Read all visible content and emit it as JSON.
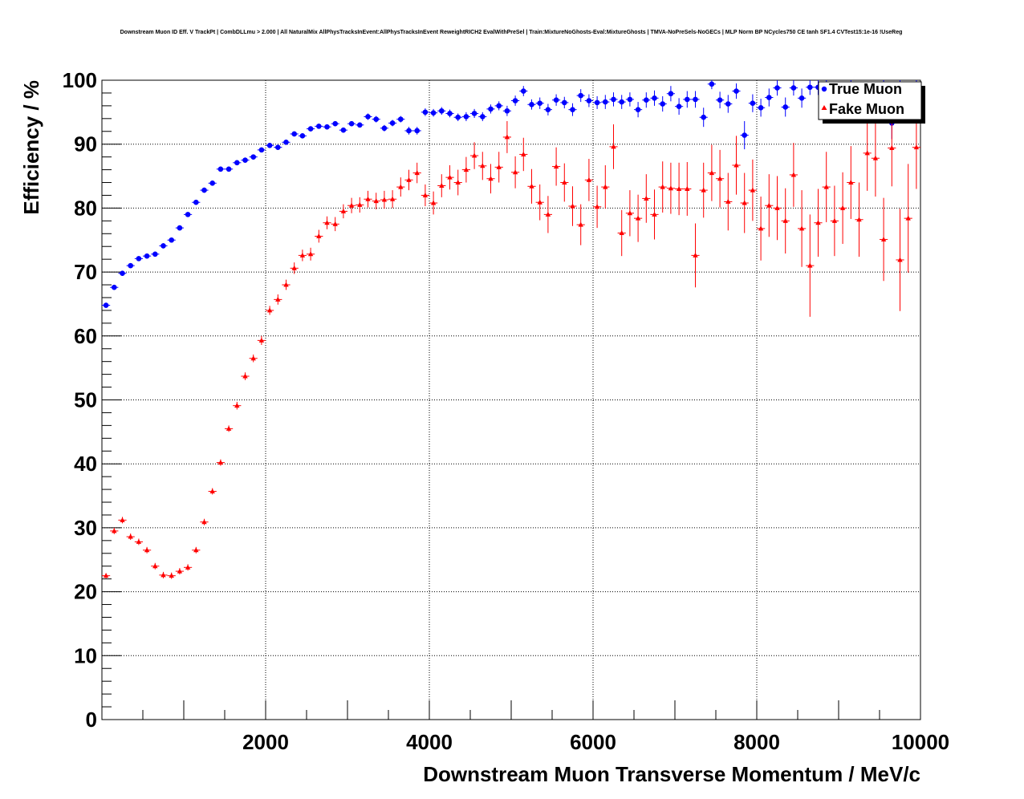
{
  "chart_data": {
    "type": "scatter",
    "title": "Downstream Muon ID Eff. V TrackPt | CombDLLmu > 2.000 | All NaturalMix AllPhysTracksInEvent:AllPhysTracksInEvent ReweightRICH2 EvalWithPreSel | Train:MixtureNoGhosts-Eval:MixtureGhosts | TMVA-NoPreSels-NoGECs | MLP Norm BP NCycles750 CE tanh SF1.4 CVTest15:1e-16 !UseReg",
    "xlabel": "Downstream Muon Transverse Momentum / MeV/c",
    "ylabel": "Efficiency / %",
    "xlim": [
      0,
      10000
    ],
    "ylim": [
      0,
      100
    ],
    "xticks": [
      "2000",
      "4000",
      "6000",
      "8000",
      "10000"
    ],
    "yticks": [
      "0",
      "10",
      "20",
      "30",
      "40",
      "50",
      "60",
      "70",
      "80",
      "90",
      "100"
    ],
    "grid": true,
    "legend_position": "top-right",
    "x": [
      50,
      150,
      250,
      350,
      450,
      550,
      650,
      750,
      850,
      950,
      1050,
      1150,
      1250,
      1350,
      1450,
      1550,
      1650,
      1750,
      1850,
      1950,
      2050,
      2150,
      2250,
      2350,
      2450,
      2550,
      2650,
      2750,
      2850,
      2950,
      3050,
      3150,
      3250,
      3350,
      3450,
      3550,
      3650,
      3750,
      3850,
      3950,
      4050,
      4150,
      4250,
      4350,
      4450,
      4550,
      4650,
      4750,
      4850,
      4950,
      5050,
      5150,
      5250,
      5350,
      5450,
      5550,
      5650,
      5750,
      5850,
      5950,
      6050,
      6150,
      6250,
      6350,
      6450,
      6550,
      6650,
      6750,
      6850,
      6950,
      7050,
      7150,
      7250,
      7350,
      7450,
      7550,
      7650,
      7750,
      7850,
      7950,
      8050,
      8150,
      8250,
      8350,
      8450,
      8550,
      8650,
      8750,
      8850,
      8950,
      9050,
      9150,
      9250,
      9350,
      9450,
      9550,
      9650,
      9750,
      9850,
      9950
    ],
    "series": [
      {
        "name": "True Muon",
        "color": "#0000ff",
        "marker": "circle",
        "values": [
          64.8,
          67.6,
          69.8,
          71.0,
          72.1,
          72.5,
          72.8,
          74.1,
          75.0,
          76.9,
          79.0,
          80.9,
          82.8,
          83.9,
          86.1,
          86.1,
          87.1,
          87.5,
          88.0,
          89.1,
          89.8,
          89.5,
          90.3,
          91.6,
          91.3,
          92.4,
          92.8,
          92.7,
          93.2,
          92.2,
          93.2,
          93.0,
          94.3,
          93.9,
          92.5,
          93.3,
          93.9,
          92.1,
          92.1,
          95.0,
          94.9,
          95.2,
          94.8,
          94.2,
          94.3,
          94.8,
          94.3,
          95.5,
          96.0,
          95.2,
          96.8,
          98.3,
          96.2,
          96.4,
          95.4,
          96.9,
          96.5,
          95.4,
          97.6,
          96.8,
          96.5,
          96.6,
          97.0,
          96.6,
          97.0,
          95.4,
          96.9,
          97.2,
          96.3,
          97.9,
          95.9,
          97.0,
          97.0,
          94.2,
          99.4,
          96.9,
          96.3,
          98.3,
          91.4,
          96.4,
          95.7,
          97.3,
          98.8,
          95.8,
          98.8,
          97.2,
          98.9,
          98.9,
          99.0,
          98.5,
          97.5,
          99.0,
          96.9,
          97.8,
          97.0,
          98.7,
          93.3,
          99.2,
          97.6,
          99.1
        ],
        "errors": [
          0.4,
          0.4,
          0.4,
          0.4,
          0.4,
          0.4,
          0.4,
          0.4,
          0.4,
          0.4,
          0.4,
          0.4,
          0.4,
          0.4,
          0.4,
          0.4,
          0.4,
          0.4,
          0.4,
          0.4,
          0.4,
          0.4,
          0.4,
          0.4,
          0.4,
          0.4,
          0.4,
          0.4,
          0.4,
          0.4,
          0.4,
          0.4,
          0.5,
          0.5,
          0.5,
          0.5,
          0.5,
          0.6,
          0.6,
          0.6,
          0.6,
          0.6,
          0.6,
          0.6,
          0.7,
          0.7,
          0.7,
          0.7,
          0.7,
          0.8,
          0.8,
          0.8,
          0.8,
          0.9,
          0.9,
          0.9,
          0.9,
          1.0,
          1.0,
          1.0,
          1.0,
          1.1,
          1.1,
          1.1,
          1.1,
          1.2,
          1.2,
          1.2,
          1.2,
          1.2,
          1.3,
          1.3,
          1.3,
          1.5,
          0.8,
          1.3,
          1.4,
          1.2,
          2.2,
          1.4,
          1.4,
          1.4,
          1.2,
          1.5,
          1.2,
          1.5,
          1.2,
          1.2,
          1.2,
          1.3,
          1.5,
          1.2,
          1.6,
          1.5,
          1.6,
          1.4,
          2.5,
          1.2,
          1.6,
          1.2
        ]
      },
      {
        "name": "Fake Muon",
        "color": "#ff0000",
        "marker": "triangle",
        "values": [
          22.5,
          29.5,
          31.2,
          28.6,
          27.8,
          26.5,
          24.0,
          22.6,
          22.5,
          23.2,
          23.8,
          26.5,
          30.9,
          35.7,
          40.2,
          45.5,
          49.1,
          53.7,
          56.5,
          59.3,
          64.0,
          65.7,
          68.0,
          70.6,
          72.6,
          72.8,
          75.6,
          77.7,
          77.5,
          79.5,
          80.4,
          80.5,
          81.4,
          81.1,
          81.3,
          81.4,
          83.3,
          84.4,
          85.5,
          82.0,
          80.8,
          83.5,
          84.8,
          84.0,
          86.0,
          88.2,
          86.6,
          84.6,
          86.4,
          91.1,
          85.6,
          88.4,
          83.4,
          80.9,
          79.0,
          86.5,
          84.0,
          80.3,
          77.4,
          84.4,
          80.2,
          83.3,
          89.6,
          76.1,
          79.2,
          78.4,
          81.5,
          79.0,
          83.3,
          83.1,
          83.0,
          83.0,
          72.6,
          82.8,
          85.5,
          84.6,
          81.0,
          86.7,
          80.8,
          82.8,
          76.8,
          80.4,
          80.0,
          78.0,
          85.2,
          76.8,
          71.0,
          77.7,
          83.3,
          78.0,
          80.0,
          84.0,
          78.2,
          88.6,
          87.8,
          75.1,
          89.4,
          71.9,
          78.4,
          89.5
        ],
        "errors": [
          0.4,
          0.5,
          0.5,
          0.5,
          0.5,
          0.5,
          0.5,
          0.5,
          0.5,
          0.5,
          0.5,
          0.5,
          0.5,
          0.5,
          0.5,
          0.5,
          0.6,
          0.6,
          0.6,
          0.7,
          0.7,
          0.8,
          0.8,
          0.9,
          0.9,
          1.0,
          1.0,
          1.0,
          1.1,
          1.1,
          1.2,
          1.2,
          1.3,
          1.3,
          1.4,
          1.4,
          1.5,
          1.6,
          1.6,
          1.7,
          1.8,
          1.8,
          1.9,
          2.0,
          2.0,
          2.1,
          2.2,
          2.3,
          2.4,
          2.5,
          2.5,
          2.6,
          2.7,
          2.8,
          2.9,
          3.0,
          3.0,
          3.1,
          3.2,
          3.3,
          3.3,
          3.4,
          3.5,
          3.6,
          3.6,
          3.7,
          3.8,
          3.9,
          4.0,
          4.0,
          4.1,
          4.2,
          5.0,
          4.3,
          4.4,
          4.5,
          4.5,
          4.6,
          4.7,
          4.8,
          5.0,
          4.9,
          5.0,
          5.1,
          5.0,
          6.0,
          8.0,
          5.3,
          5.5,
          5.5,
          5.6,
          5.7,
          5.8,
          5.9,
          6.0,
          6.5,
          6.0,
          8.0,
          8.5,
          6.5
        ]
      }
    ]
  }
}
